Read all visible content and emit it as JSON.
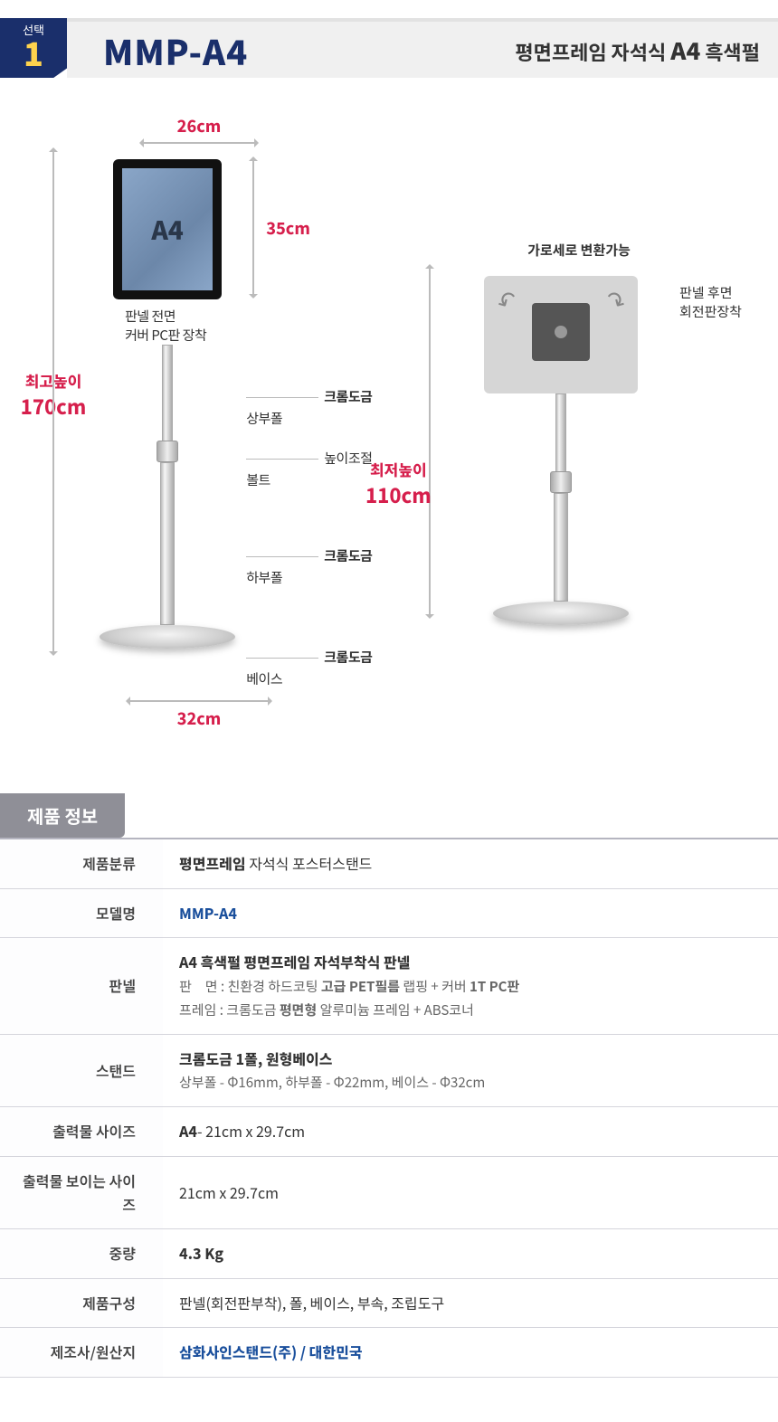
{
  "colors": {
    "brand_navy": "#1a2f6b",
    "brand_gold": "#ffd34d",
    "accent_red": "#d61f4c",
    "divider": "#b5b5c0",
    "link_blue": "#1a4f9c"
  },
  "header": {
    "badge_sub": "선택",
    "badge_num": "1",
    "model": "MMP-A4",
    "subtitle_prefix": "평면프레임 자석식 ",
    "subtitle_accent": "A4",
    "subtitle_suffix": " 흑색펄"
  },
  "diagram": {
    "front": {
      "width_cm": "26cm",
      "height_cm_panel": "35cm",
      "panel_size_label": "A4",
      "cover_note_l1": "판넬 전면",
      "cover_note_l2": "커버 PC판 장착",
      "max_height_label": "최고높이",
      "max_height_value": "170cm",
      "callouts": [
        {
          "strong": "크롬도금",
          "rest": " 상부폴"
        },
        {
          "strong": "",
          "rest": "높이조절볼트"
        },
        {
          "strong": "크롬도금",
          "rest": " 하부폴"
        },
        {
          "strong": "크롬도금",
          "rest": " 베이스"
        }
      ],
      "base_dia": "32cm"
    },
    "back": {
      "rot_label": "가로세로 변환가능",
      "rear_note_l1": "판넬 후면",
      "rear_note_l2": "회전판장착",
      "min_height_label": "최저높이",
      "min_height_value": "110cm"
    }
  },
  "spec_title": "제품 정보",
  "spec_rows": [
    {
      "label": "제품분류",
      "html": "<span class='strong'>평면프레임</span> 자석식 포스터스탠드"
    },
    {
      "label": "모델명",
      "html": "<span class='blue'>MMP-A4</span>"
    },
    {
      "label": "판넬",
      "html": "<span class='strong'>A4 흑색펄 평면프레임 자석부착식 판넬</span><br><span class='sub'>판　면 : 친환경 하드코팅 <b>고급 PET필름</b> 랩핑 + 커버 <b>1T PC판</b></span><br><span class='sub'>프레임 : 크롬도금 <b>평면형</b> 알루미늄 프레임 + ABS코너</span>"
    },
    {
      "label": "스탠드",
      "html": "<span class='strong'>크롬도금 1폴, 원형베이스</span><br><span class='sub'>상부폴 - Φ16mm, 하부폴 - Φ22mm, 베이스 - Φ32cm</span>"
    },
    {
      "label": "출력물 사이즈",
      "html": "<span class='strong'>A4</span>- 21cm x 29.7cm"
    },
    {
      "label": "출력물 보이는 사이즈",
      "html": "21cm x 29.7cm"
    },
    {
      "label": "중량",
      "html": "<span class='strong'>4.3 Kg</span>"
    },
    {
      "label": "제품구성",
      "html": "판넬(회전판부착), 폴, 베이스, 부속, 조립도구"
    },
    {
      "label": "제조사/원산지",
      "html": "<span class='blue'>삼화사인스탠드(주) / 대한민국</span>"
    }
  ]
}
